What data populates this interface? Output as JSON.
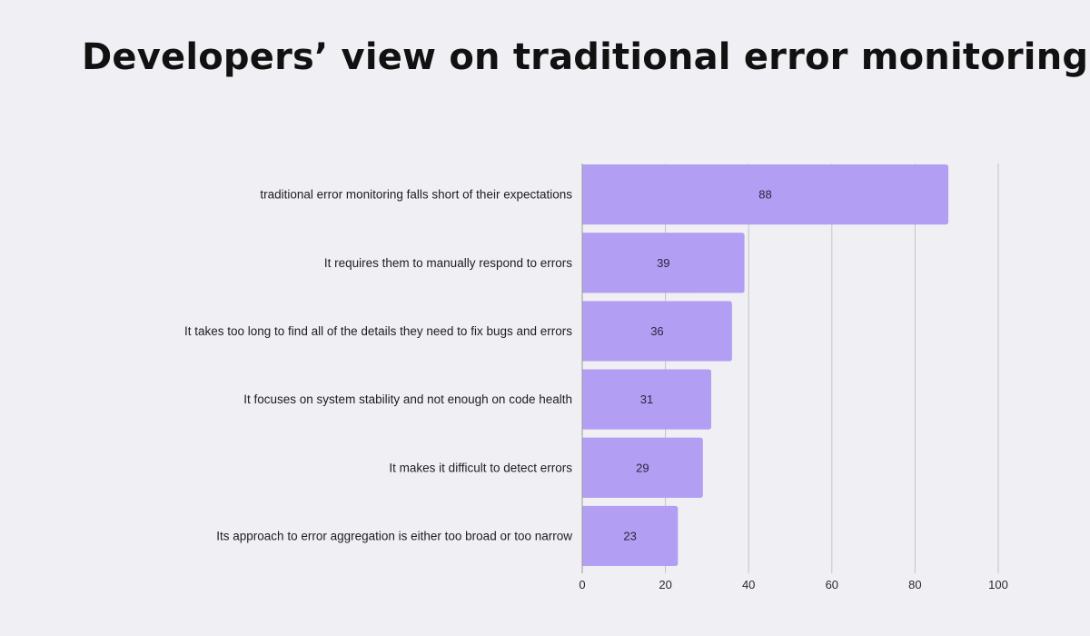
{
  "chart_data": {
    "type": "bar",
    "orientation": "horizontal",
    "title": "Developers’ view on traditional error monitoring",
    "categories": [
      "traditional error monitoring falls short of their expectations",
      "It requires them to manually respond to errors",
      "It takes too long to find all of the details they need to fix bugs and errors",
      "It focuses on system stability and not enough on code health",
      "It makes it difficult to detect errors",
      "Its approach to error aggregation is either too broad or too narrow"
    ],
    "values": [
      88,
      39,
      36,
      31,
      29,
      23
    ],
    "xlim": [
      0,
      100
    ],
    "xticks": [
      "0",
      "20",
      "40",
      "60",
      "80",
      "100"
    ],
    "xlabel": "",
    "ylabel": "",
    "grid": true,
    "legend": "none",
    "bar_color": "#b29ef2",
    "grid_color": "#c4c4c4",
    "axis_color": "#9a9a9a"
  }
}
